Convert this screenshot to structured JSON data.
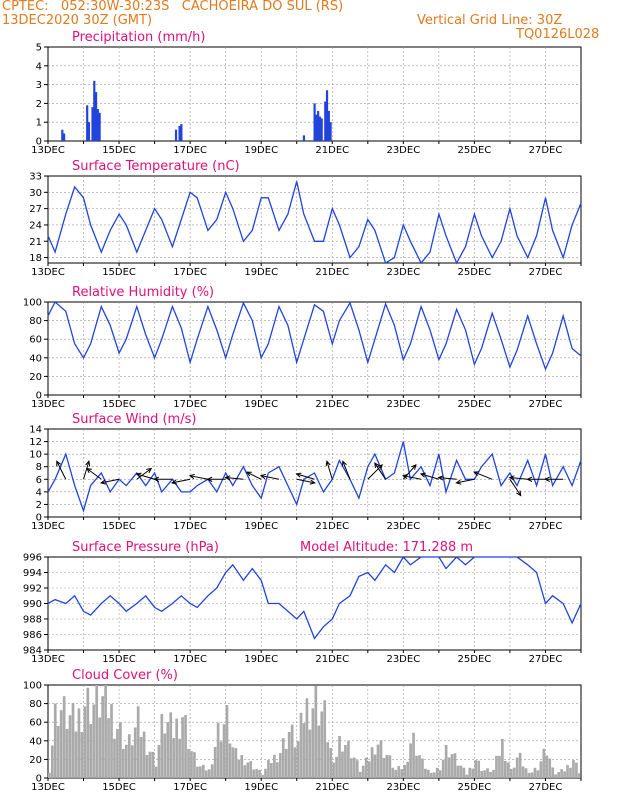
{
  "header": {
    "line1": "CPTEC:   052:30W-30:23S   CACHOEIRA DO SUL (RS)",
    "line2": "13DEC2020 30Z (GMT)",
    "grid_note": "Vertical Grid Line: 30Z",
    "model": "TQ0126L028"
  },
  "colors": {
    "line": "#2244dd",
    "bar": "#2244dd",
    "cloud": "#aaaaaa",
    "title": "#e0107a",
    "header": "#e07a1f"
  },
  "chart_data": [
    {
      "type": "bar",
      "title": "Precipitation (mm/h)",
      "ylim": [
        0,
        5
      ],
      "yticks": [
        "0",
        "1",
        "2",
        "3",
        "4",
        "5"
      ],
      "xticks": [
        "13DEC",
        "15DEC",
        "17DEC",
        "19DEC",
        "21DEC",
        "23DEC",
        "25DEC",
        "27DEC"
      ],
      "x_start": 13.0,
      "x_end": 28.0,
      "x": [
        13.4,
        13.45,
        14.1,
        14.15,
        14.25,
        14.3,
        14.35,
        14.4,
        14.45,
        16.6,
        16.7,
        16.75,
        20.2,
        20.5,
        20.55,
        20.6,
        20.65,
        20.7,
        20.8,
        20.85,
        20.9,
        20.95
      ],
      "values": [
        0.6,
        0.4,
        1.9,
        1.0,
        1.8,
        3.2,
        2.6,
        1.7,
        1.5,
        0.6,
        0.8,
        0.9,
        0.3,
        2.0,
        1.4,
        1.6,
        1.3,
        1.2,
        2.1,
        2.7,
        1.6,
        1.0
      ]
    },
    {
      "type": "line",
      "title": "Surface Temperature (nC)",
      "ylim": [
        17,
        33
      ],
      "yticks": [
        "18",
        "21",
        "24",
        "27",
        "30",
        "33"
      ],
      "xticks": [
        "13DEC",
        "15DEC",
        "17DEC",
        "19DEC",
        "21DEC",
        "23DEC",
        "25DEC",
        "27DEC"
      ],
      "x_start": 13.0,
      "x_end": 28.0,
      "x": [
        13.0,
        13.2,
        13.5,
        13.75,
        14.0,
        14.2,
        14.5,
        14.75,
        15.0,
        15.2,
        15.5,
        15.75,
        16.0,
        16.2,
        16.5,
        16.75,
        17.0,
        17.2,
        17.5,
        17.75,
        18.0,
        18.2,
        18.5,
        18.75,
        19.0,
        19.2,
        19.5,
        19.75,
        20.0,
        20.2,
        20.5,
        20.75,
        21.0,
        21.2,
        21.5,
        21.75,
        22.0,
        22.2,
        22.5,
        22.75,
        23.0,
        23.2,
        23.5,
        23.75,
        24.0,
        24.2,
        24.5,
        24.75,
        25.0,
        25.2,
        25.5,
        25.75,
        26.0,
        26.2,
        26.5,
        26.75,
        27.0,
        27.2,
        27.5,
        27.75,
        28.0
      ],
      "values": [
        22,
        19,
        26,
        31,
        29,
        24,
        19,
        23,
        26,
        24,
        19,
        23,
        27,
        25,
        20,
        25,
        30,
        29,
        23,
        25,
        30,
        27,
        21,
        23,
        29,
        29,
        23,
        26,
        32,
        26,
        21,
        21,
        27,
        24,
        18,
        20,
        25,
        23,
        17,
        18,
        24,
        21,
        17,
        19,
        26,
        22,
        17,
        20,
        26,
        22,
        18,
        21,
        27,
        22,
        18,
        22,
        29,
        23,
        18,
        24,
        28
      ]
    },
    {
      "type": "line",
      "title": "Relative Humidity (%)",
      "ylim": [
        0,
        100
      ],
      "yticks": [
        "0",
        "20",
        "40",
        "60",
        "80",
        "100"
      ],
      "xticks": [
        "13DEC",
        "15DEC",
        "17DEC",
        "19DEC",
        "21DEC",
        "23DEC",
        "25DEC",
        "27DEC"
      ],
      "x_start": 13.0,
      "x_end": 28.0,
      "x": [
        13.0,
        13.2,
        13.5,
        13.75,
        14.0,
        14.2,
        14.5,
        14.75,
        15.0,
        15.2,
        15.5,
        15.75,
        16.0,
        16.2,
        16.5,
        16.75,
        17.0,
        17.2,
        17.5,
        17.75,
        18.0,
        18.2,
        18.5,
        18.75,
        19.0,
        19.2,
        19.5,
        19.75,
        20.0,
        20.2,
        20.5,
        20.75,
        21.0,
        21.2,
        21.5,
        21.75,
        22.0,
        22.2,
        22.5,
        22.75,
        23.0,
        23.2,
        23.5,
        23.75,
        24.0,
        24.2,
        24.5,
        24.75,
        25.0,
        25.2,
        25.5,
        25.75,
        26.0,
        26.2,
        26.5,
        26.75,
        27.0,
        27.2,
        27.5,
        27.75,
        28.0
      ],
      "values": [
        85,
        100,
        90,
        55,
        40,
        55,
        95,
        75,
        45,
        60,
        95,
        65,
        40,
        60,
        95,
        72,
        35,
        60,
        95,
        70,
        40,
        65,
        99,
        80,
        40,
        55,
        95,
        75,
        35,
        60,
        97,
        90,
        55,
        80,
        99,
        70,
        35,
        60,
        98,
        75,
        38,
        55,
        95,
        70,
        38,
        55,
        92,
        70,
        33,
        50,
        88,
        60,
        30,
        48,
        85,
        55,
        28,
        45,
        85,
        50,
        42
      ]
    },
    {
      "type": "line",
      "title": "Surface Wind (m/s)",
      "ylim": [
        0,
        14
      ],
      "yticks": [
        "0",
        "2",
        "4",
        "6",
        "8",
        "10",
        "12",
        "14"
      ],
      "xticks": [
        "13DEC",
        "15DEC",
        "17DEC",
        "19DEC",
        "21DEC",
        "23DEC",
        "25DEC",
        "27DEC"
      ],
      "x_start": 13.0,
      "x_end": 28.0,
      "x": [
        13.0,
        13.2,
        13.5,
        13.75,
        14.0,
        14.2,
        14.5,
        14.75,
        15.0,
        15.2,
        15.5,
        15.75,
        16.0,
        16.2,
        16.5,
        16.75,
        17.0,
        17.2,
        17.5,
        17.75,
        18.0,
        18.2,
        18.5,
        18.75,
        19.0,
        19.2,
        19.5,
        19.75,
        20.0,
        20.2,
        20.5,
        20.75,
        21.0,
        21.2,
        21.5,
        21.75,
        22.0,
        22.2,
        22.5,
        22.75,
        23.0,
        23.2,
        23.5,
        23.75,
        24.0,
        24.2,
        24.5,
        24.75,
        25.0,
        25.2,
        25.5,
        25.75,
        26.0,
        26.2,
        26.5,
        26.75,
        27.0,
        27.2,
        27.5,
        27.75,
        28.0
      ],
      "values": [
        4,
        6,
        10,
        5,
        1,
        5,
        7,
        4,
        6,
        5,
        7,
        5,
        7,
        4,
        6,
        4,
        4,
        5,
        6,
        4,
        7,
        5,
        8,
        5,
        3,
        7,
        8,
        5,
        2,
        6,
        7,
        4,
        6,
        9,
        6,
        3,
        8,
        10,
        6,
        7,
        12,
        6,
        8,
        5,
        10,
        4,
        9,
        6,
        6,
        8,
        10,
        5,
        7,
        5,
        9,
        5,
        10,
        5,
        8,
        5,
        9
      ],
      "vectors": [
        {
          "x": 13.5,
          "u": -0.5,
          "v": 1.0
        },
        {
          "x": 14.0,
          "u": 0.3,
          "v": 1.0
        },
        {
          "x": 14.5,
          "u": -0.8,
          "v": 0.6
        },
        {
          "x": 15.0,
          "u": -1.0,
          "v": -0.2
        },
        {
          "x": 15.5,
          "u": 0.8,
          "v": 0.6
        },
        {
          "x": 16.0,
          "u": -1.0,
          "v": 0.3
        },
        {
          "x": 16.5,
          "u": -1.0,
          "v": 0.0
        },
        {
          "x": 17.0,
          "u": -1.0,
          "v": -0.2
        },
        {
          "x": 17.5,
          "u": -1.0,
          "v": 0.2
        },
        {
          "x": 18.0,
          "u": -1.0,
          "v": 0.0
        },
        {
          "x": 18.5,
          "u": -1.0,
          "v": 0.1
        },
        {
          "x": 19.0,
          "u": -0.8,
          "v": 0.4
        },
        {
          "x": 19.5,
          "u": -1.0,
          "v": 0.2
        },
        {
          "x": 20.0,
          "u": 1.0,
          "v": -0.2
        },
        {
          "x": 20.5,
          "u": -1.0,
          "v": 0.3
        },
        {
          "x": 21.0,
          "u": -0.3,
          "v": 1.0
        },
        {
          "x": 21.5,
          "u": -0.4,
          "v": 1.0
        },
        {
          "x": 22.0,
          "u": 0.8,
          "v": 0.8
        },
        {
          "x": 22.5,
          "u": -0.6,
          "v": 0.9
        },
        {
          "x": 23.0,
          "u": 0.7,
          "v": 0.8
        },
        {
          "x": 23.5,
          "u": -1.0,
          "v": 0.2
        },
        {
          "x": 24.0,
          "u": -1.0,
          "v": 0.3
        },
        {
          "x": 24.5,
          "u": -1.0,
          "v": 0.1
        },
        {
          "x": 25.0,
          "u": -1.0,
          "v": -0.2
        },
        {
          "x": 25.5,
          "u": -1.0,
          "v": 0.4
        },
        {
          "x": 26.0,
          "u": 0.6,
          "v": -0.9
        },
        {
          "x": 26.5,
          "u": -1.0,
          "v": 0.1
        },
        {
          "x": 27.0,
          "u": -1.0,
          "v": 0.0
        },
        {
          "x": 27.5,
          "u": -1.0,
          "v": 0.0
        }
      ]
    },
    {
      "type": "line",
      "title": "Surface Pressure (hPa)",
      "annotation": "Model Altitude: 171.288  m",
      "ylim": [
        984,
        996
      ],
      "yticks": [
        "984",
        "986",
        "988",
        "990",
        "992",
        "994",
        "996"
      ],
      "xticks": [
        "13DEC",
        "15DEC",
        "17DEC",
        "19DEC",
        "21DEC",
        "23DEC",
        "25DEC",
        "27DEC"
      ],
      "x_start": 13.0,
      "x_end": 28.0,
      "x": [
        13.0,
        13.2,
        13.5,
        13.75,
        14.0,
        14.2,
        14.5,
        14.75,
        15.0,
        15.2,
        15.5,
        15.75,
        16.0,
        16.2,
        16.5,
        16.75,
        17.0,
        17.2,
        17.5,
        17.75,
        18.0,
        18.2,
        18.5,
        18.75,
        19.0,
        19.2,
        19.5,
        19.75,
        20.0,
        20.2,
        20.5,
        20.75,
        21.0,
        21.2,
        21.5,
        21.75,
        22.0,
        22.2,
        22.5,
        22.75,
        23.0,
        23.2,
        23.5,
        23.75,
        24.0,
        24.2,
        24.5,
        24.75,
        25.0,
        25.2,
        25.5,
        25.75,
        26.0,
        26.2,
        26.5,
        26.75,
        27.0,
        27.2,
        27.5,
        27.75,
        28.0
      ],
      "values": [
        990,
        990.5,
        990,
        991,
        989,
        988.5,
        990,
        991,
        990,
        989,
        990,
        991,
        989.5,
        989,
        990,
        991,
        990,
        989.5,
        991,
        992,
        994,
        995,
        993,
        994.5,
        993,
        990,
        990,
        989,
        988,
        989,
        985.5,
        987,
        988,
        990,
        991,
        993.5,
        994,
        993,
        995,
        994,
        996,
        995,
        996.5,
        996,
        996,
        994.5,
        996,
        995,
        996.5,
        996,
        998,
        997,
        996.5,
        996,
        995,
        994,
        990,
        991,
        990,
        987.5,
        990
      ]
    },
    {
      "type": "area",
      "title": "Cloud Cover (%)",
      "ylim": [
        0,
        100
      ],
      "yticks": [
        "0",
        "20",
        "40",
        "60",
        "80",
        "100"
      ],
      "xticks": [
        "13DEC",
        "15DEC",
        "17DEC",
        "19DEC",
        "21DEC",
        "23DEC",
        "25DEC",
        "27DEC"
      ],
      "x_start": 13.0,
      "x_end": 28.0,
      "x": [
        13.0,
        13.2,
        13.5,
        13.75,
        14.0,
        14.2,
        14.5,
        14.75,
        15.0,
        15.2,
        15.5,
        15.75,
        16.0,
        16.2,
        16.5,
        16.75,
        17.0,
        17.2,
        17.5,
        17.75,
        18.0,
        18.2,
        18.5,
        18.75,
        19.0,
        19.2,
        19.5,
        19.75,
        20.0,
        20.2,
        20.5,
        20.75,
        21.0,
        21.2,
        21.5,
        21.75,
        22.0,
        22.2,
        22.5,
        22.75,
        23.0,
        23.2,
        23.5,
        23.75,
        24.0,
        24.2,
        24.5,
        24.75,
        25.0,
        25.2,
        25.5,
        25.75,
        26.0,
        26.2,
        26.5,
        26.75,
        27.0,
        27.2,
        27.5,
        27.75,
        28.0
      ],
      "values": [
        10,
        95,
        80,
        70,
        100,
        95,
        100,
        85,
        60,
        40,
        70,
        45,
        20,
        75,
        60,
        85,
        35,
        15,
        10,
        60,
        75,
        30,
        25,
        15,
        5,
        20,
        35,
        60,
        45,
        90,
        100,
        80,
        15,
        55,
        35,
        10,
        25,
        50,
        30,
        10,
        15,
        55,
        20,
        5,
        15,
        40,
        20,
        5,
        25,
        10,
        10,
        45,
        10,
        30,
        5,
        15,
        40,
        5,
        10,
        25,
        0
      ]
    }
  ]
}
